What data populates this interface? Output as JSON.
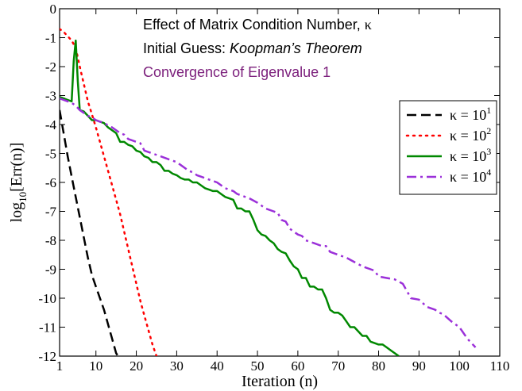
{
  "chart_data": {
    "type": "line",
    "xlabel": "Iteration (n)",
    "ylabel_main": "log",
    "ylabel_sub": "10",
    "ylabel_rest": "[Err(n)]",
    "xlim": [
      1,
      110
    ],
    "ylim": [
      -12,
      0
    ],
    "xticks": [
      1,
      10,
      20,
      30,
      40,
      50,
      60,
      70,
      80,
      90,
      100,
      110
    ],
    "yticks": [
      0,
      -1,
      -2,
      -3,
      -4,
      -5,
      -6,
      -7,
      -8,
      -9,
      -10,
      -11,
      -12
    ],
    "annotations": [
      {
        "prefix": "Effect of Matrix Condition Number, ",
        "emph": "κ",
        "color": "#000000"
      },
      {
        "prefix": "Initial Guess: ",
        "emph": "Koopman’s Theorem",
        "color": "#000000"
      },
      {
        "prefix": "Convergence of Eigenvalue 1",
        "emph": "",
        "color": "#7b1e7b"
      }
    ],
    "legend_position": "top-right",
    "series": [
      {
        "name_base": "κ = 10",
        "name_exp": "1",
        "color": "#000000",
        "dash": "12,6",
        "x": [
          1,
          2,
          3,
          4,
          5,
          6,
          7,
          8,
          9,
          10,
          11,
          12,
          13,
          14,
          15,
          16
        ],
        "y": [
          -3.5,
          -4.3,
          -5.1,
          -5.8,
          -6.5,
          -7.2,
          -7.9,
          -8.6,
          -9.2,
          -9.6,
          -10.0,
          -10.4,
          -10.9,
          -11.4,
          -11.9,
          -12.1
        ]
      },
      {
        "name_base": "κ = 10",
        "name_exp": "2",
        "color": "#ff0000",
        "dash": "2,6",
        "x": [
          1,
          2,
          3,
          4,
          5,
          6,
          7,
          8,
          9,
          10,
          11,
          12,
          13,
          14,
          15,
          16,
          17,
          18,
          19,
          20,
          21,
          22,
          23,
          24,
          25
        ],
        "y": [
          -0.7,
          -0.8,
          -0.95,
          -1.1,
          -1.35,
          -2.0,
          -2.6,
          -3.2,
          -3.65,
          -4.1,
          -4.6,
          -5.1,
          -5.6,
          -6.1,
          -6.6,
          -7.1,
          -7.7,
          -8.3,
          -8.9,
          -9.5,
          -10.1,
          -10.6,
          -11.1,
          -11.6,
          -12.0
        ]
      },
      {
        "name_base": "κ = 10",
        "name_exp": "3",
        "color": "#008800",
        "dash": "",
        "x": [
          1,
          2,
          3,
          4,
          4.5,
          5,
          5.5,
          6,
          7,
          8,
          9,
          10,
          12,
          13,
          14,
          15,
          16,
          17,
          18,
          19,
          20,
          21,
          22,
          23,
          24,
          25,
          26,
          27,
          28,
          29,
          30,
          31,
          32,
          33,
          34,
          35,
          36,
          37,
          38,
          39,
          40,
          41,
          42,
          43,
          44,
          45,
          46,
          47,
          48,
          49,
          50,
          51,
          52,
          53,
          54,
          55,
          56,
          57,
          58,
          59,
          60,
          61,
          62,
          63,
          64,
          65,
          66,
          67,
          68,
          69,
          70,
          71,
          72,
          73,
          74,
          75,
          76,
          77,
          78,
          79,
          80,
          81,
          82,
          83,
          84,
          85
        ],
        "y": [
          -3.05,
          -3.1,
          -3.15,
          -3.2,
          -1.8,
          -1.1,
          -2.5,
          -3.5,
          -3.55,
          -3.7,
          -3.85,
          -3.85,
          -3.95,
          -4.1,
          -4.2,
          -4.3,
          -4.6,
          -4.6,
          -4.7,
          -4.75,
          -4.9,
          -4.95,
          -5.1,
          -5.15,
          -5.3,
          -5.3,
          -5.4,
          -5.6,
          -5.6,
          -5.7,
          -5.75,
          -5.85,
          -5.9,
          -5.9,
          -6.0,
          -6.0,
          -6.1,
          -6.2,
          -6.25,
          -6.3,
          -6.3,
          -6.4,
          -6.5,
          -6.55,
          -6.6,
          -6.9,
          -6.9,
          -7.0,
          -7.0,
          -7.3,
          -7.65,
          -7.8,
          -7.85,
          -8.0,
          -8.1,
          -8.3,
          -8.4,
          -8.45,
          -8.7,
          -8.9,
          -9.0,
          -9.3,
          -9.3,
          -9.6,
          -9.6,
          -9.7,
          -9.7,
          -10.0,
          -10.4,
          -10.5,
          -10.5,
          -10.6,
          -10.8,
          -11.0,
          -11.0,
          -11.15,
          -11.3,
          -11.3,
          -11.5,
          -11.55,
          -11.6,
          -11.6,
          -11.7,
          -11.8,
          -11.9,
          -12.0
        ]
      },
      {
        "name_base": "κ = 10",
        "name_exp": "4",
        "color": "#9b30d9",
        "dash": "12,5,3,5",
        "x": [
          1,
          2,
          3,
          4,
          5,
          6,
          7,
          8,
          9,
          10,
          11,
          12,
          14,
          15,
          16,
          17,
          18,
          19,
          20,
          21,
          22,
          24,
          26,
          28,
          30,
          32,
          33,
          34,
          35,
          36,
          38,
          40,
          42,
          44,
          45,
          46,
          47,
          48,
          50,
          52,
          54,
          55,
          56,
          57,
          58,
          60,
          61,
          62,
          64,
          66,
          67,
          68,
          70,
          72,
          74,
          76,
          78,
          79,
          80,
          82,
          84,
          86,
          88,
          90,
          92,
          94,
          95,
          96,
          98,
          100,
          102,
          104
        ],
        "y": [
          -3.1,
          -3.15,
          -3.2,
          -3.25,
          -3.35,
          -3.5,
          -3.6,
          -3.7,
          -3.75,
          -3.85,
          -3.9,
          -3.95,
          -4.1,
          -4.2,
          -4.3,
          -4.35,
          -4.5,
          -4.55,
          -4.6,
          -4.65,
          -4.9,
          -5.0,
          -5.1,
          -5.2,
          -5.3,
          -5.5,
          -5.6,
          -5.65,
          -5.75,
          -5.8,
          -5.9,
          -6.0,
          -6.2,
          -6.3,
          -6.4,
          -6.45,
          -6.5,
          -6.55,
          -6.7,
          -6.9,
          -7.0,
          -7.05,
          -7.3,
          -7.35,
          -7.6,
          -7.8,
          -7.85,
          -8.0,
          -8.1,
          -8.2,
          -8.2,
          -8.4,
          -8.5,
          -8.6,
          -8.75,
          -8.9,
          -9.0,
          -9.05,
          -9.25,
          -9.3,
          -9.35,
          -9.5,
          -10.0,
          -10.05,
          -10.3,
          -10.4,
          -10.5,
          -10.55,
          -10.8,
          -11.0,
          -11.4,
          -11.7
        ]
      }
    ]
  }
}
